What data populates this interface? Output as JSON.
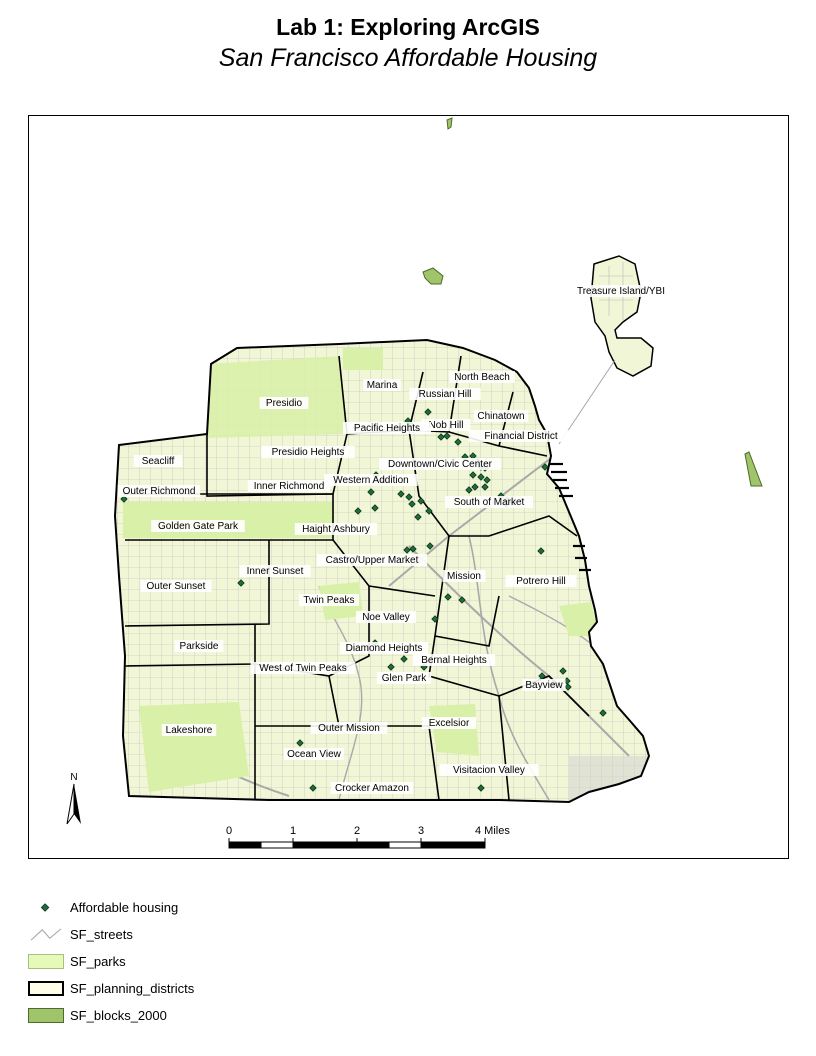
{
  "header": {
    "title": "Lab 1:  Exploring ArcGIS",
    "subtitle": "San Francisco Affordable Housing"
  },
  "map": {
    "colors": {
      "land": "#f1f6d6",
      "parks": "#d9f0a8",
      "streets": "#a9a9a9",
      "blocks": "#9fc46a",
      "boundary": "#000000",
      "housing_fill": "#1f6b3a",
      "housing_stroke": "#0b2e16"
    },
    "districts": [
      "Treasure Island/YBI",
      "North Beach",
      "Marina",
      "Russian Hill",
      "Presidio",
      "Chinatown",
      "Nob Hill",
      "Pacific Heights",
      "Financial District",
      "Presidio Heights",
      "Seacliff",
      "Downtown/Civic Center",
      "Western Addition",
      "Outer Richmond",
      "Inner Richmond",
      "South of Market",
      "Golden Gate Park",
      "Haight Ashbury",
      "Castro/Upper Market",
      "Inner Sunset",
      "Outer Sunset",
      "Mission",
      "Potrero Hill",
      "Twin Peaks",
      "Noe Valley",
      "Parkside",
      "Diamond Heights",
      "Bernal Heights",
      "West of Twin Peaks",
      "Glen Park",
      "Bayview",
      "Lakeshore",
      "Excelsior",
      "Outer Mission",
      "Ocean View",
      "Visitacion Valley",
      "Crocker Amazon"
    ],
    "north_arrow": {
      "label": "N",
      "icon": "north-arrow-icon"
    },
    "scale_bar": {
      "tick_labels": [
        "0",
        "1",
        "2",
        "3",
        "4 Miles"
      ],
      "miles": [
        0,
        1,
        2,
        3,
        4
      ]
    }
  },
  "legend": {
    "items": [
      {
        "label": "Affordable housing",
        "icon": "point-marker-icon"
      },
      {
        "label": "SF_streets",
        "icon": "line-icon"
      },
      {
        "label": "SF_parks",
        "icon": "polygon-swatch"
      },
      {
        "label": "SF_planning_districts",
        "icon": "polygon-swatch"
      },
      {
        "label": "SF_blocks_2000",
        "icon": "polygon-swatch"
      }
    ]
  }
}
